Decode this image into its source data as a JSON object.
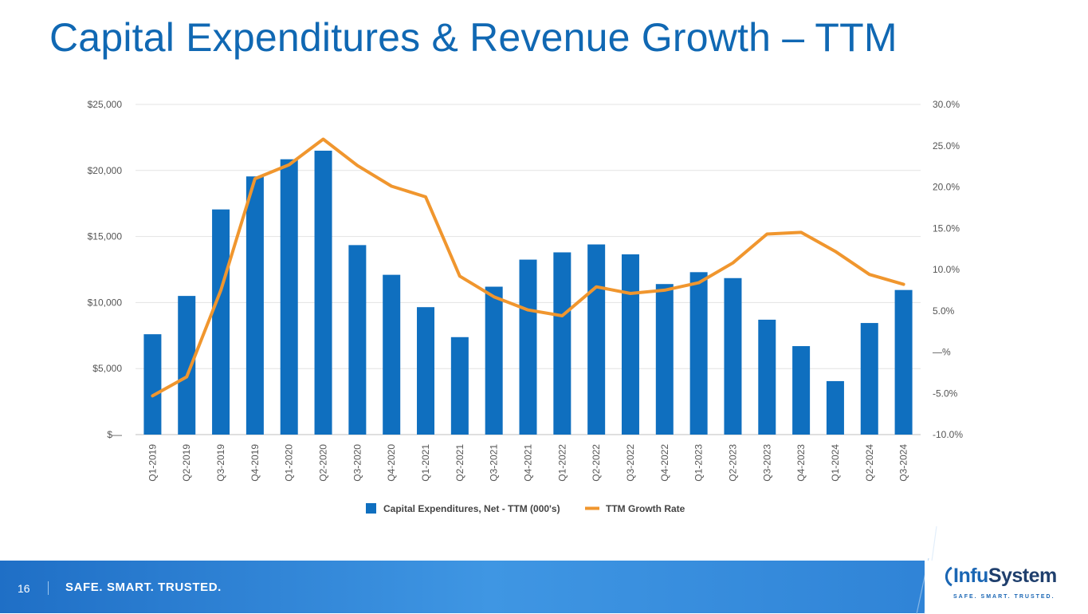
{
  "slide": {
    "title": "Capital Expenditures & Revenue Growth – TTM",
    "page_number": "16",
    "tagline": "SAFE. SMART. TRUSTED.",
    "logo": {
      "prefix": "Infu",
      "suffix": "System",
      "tagline": "SAFE. SMART. TRUSTED."
    }
  },
  "chart_data": {
    "type": "bar",
    "categories": [
      "Q1-2019",
      "Q2-2019",
      "Q3-2019",
      "Q4-2019",
      "Q1-2020",
      "Q2-2020",
      "Q3-2020",
      "Q4-2020",
      "Q1-2021",
      "Q2-2021",
      "Q3-2021",
      "Q4-2021",
      "Q1-2022",
      "Q2-2022",
      "Q3-2022",
      "Q4-2022",
      "Q1-2023",
      "Q2-2023",
      "Q3-2023",
      "Q4-2023",
      "Q1-2024",
      "Q2-2024",
      "Q3-2024"
    ],
    "series": [
      {
        "name": "Capital Expenditures, Net - TTM (000's)",
        "type": "bar",
        "axis": "left",
        "color": "#0f6fbf",
        "values": [
          7600,
          10500,
          17050,
          19550,
          20850,
          21500,
          14350,
          12100,
          9650,
          7380,
          11200,
          13250,
          13800,
          14400,
          13650,
          11400,
          12300,
          11850,
          8700,
          6700,
          4050,
          8450,
          10950
        ]
      },
      {
        "name": "TTM Growth Rate",
        "type": "line",
        "axis": "right",
        "color": "#f0962e",
        "values": [
          -5.3,
          -3.0,
          7.5,
          21.0,
          22.7,
          25.8,
          22.6,
          20.1,
          18.8,
          9.2,
          6.7,
          5.1,
          4.4,
          7.9,
          7.1,
          7.5,
          8.4,
          10.8,
          14.3,
          14.5,
          12.2,
          9.4,
          8.2
        ]
      }
    ],
    "y_left": {
      "ylim": [
        0,
        25000
      ],
      "ticks": [
        0,
        5000,
        10000,
        15000,
        20000,
        25000
      ],
      "tick_labels": [
        "$—",
        "$5,000",
        "$10,000",
        "$15,000",
        "$20,000",
        "$25,000"
      ]
    },
    "y_right": {
      "ylim": [
        -10,
        30
      ],
      "ticks": [
        -10,
        -5,
        0,
        5,
        10,
        15,
        20,
        25,
        30
      ],
      "tick_labels": [
        "-10.0%",
        "-5.0%",
        "—%",
        "5.0%",
        "10.0%",
        "15.0%",
        "20.0%",
        "25.0%",
        "30.0%"
      ]
    },
    "grid": true,
    "legend": "bottom"
  }
}
